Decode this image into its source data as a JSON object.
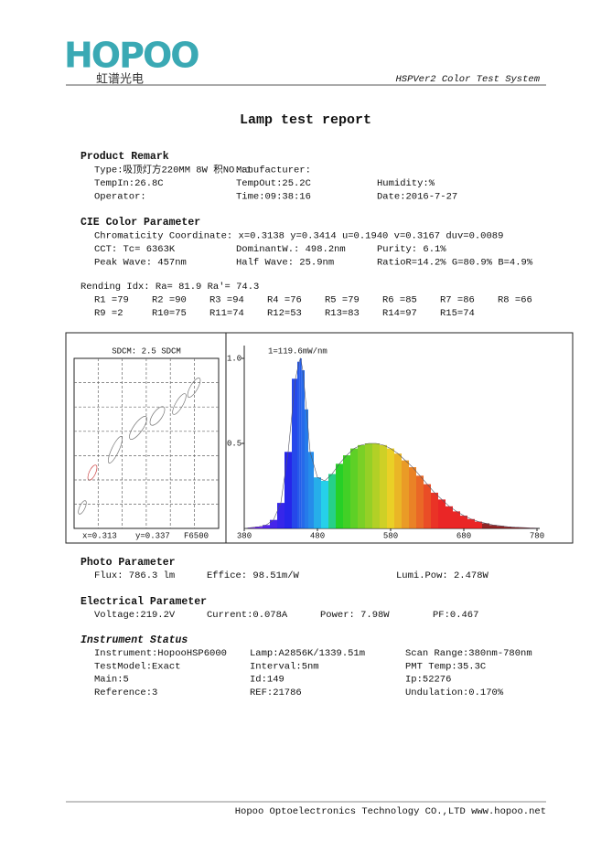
{
  "header": {
    "logo": "HOPOO",
    "logo_sub": "虹谱光电",
    "system": "HSPVer2 Color Test System"
  },
  "title": "Lamp test report",
  "product": {
    "heading": "Product Remark",
    "rows": [
      [
        "Type:吸顶灯方220MM 8W 积NO.:1",
        "Manufacturer:"
      ],
      [
        "TempIn:26.8C",
        "TempOut:25.2C",
        "Humidity:%"
      ],
      [
        "Operator:",
        "Time:09:38:16",
        "Date:2016-7-27"
      ]
    ]
  },
  "cie": {
    "heading": "CIE Color Parameter",
    "rows": [
      [
        "Chromaticity Coordinate: x=0.3138 y=0.3414 u=0.1940 v=0.3167  duv=0.0089"
      ],
      [
        "CCT: Tc= 6363K",
        "DominantW.: 498.2nm",
        "Purity: 6.1%"
      ],
      [
        "Peak Wave: 457nm",
        "Half Wave: 25.9nm",
        "RatioR=14.2% G=80.9% B=4.9%"
      ]
    ]
  },
  "rendering": {
    "heading": "Rending Idx:  Ra= 81.9    Ra'= 74.3",
    "rows": [
      [
        "R1 =79",
        "R2 =90",
        "R3 =94",
        "R4 =76",
        "R5 =79",
        "R6 =85",
        "R7 =86",
        "R8 =66"
      ],
      [
        "R9 =2",
        "R10=75",
        "R11=74",
        "R12=53",
        "R13=83",
        "R14=97",
        "R15=74"
      ]
    ]
  },
  "sdcm": {
    "title": "SDCM:  2.5 SDCM",
    "x": "x=0.313",
    "y": "y=0.337",
    "ref": "F6500"
  },
  "chart_data": {
    "type": "area",
    "annotation": "1=119.6mW/nm",
    "x": [
      380,
      390,
      400,
      410,
      420,
      430,
      440,
      450,
      455,
      457,
      460,
      465,
      470,
      480,
      490,
      500,
      510,
      520,
      530,
      540,
      550,
      560,
      570,
      580,
      590,
      600,
      610,
      620,
      630,
      640,
      650,
      660,
      670,
      680,
      690,
      700,
      710,
      720,
      730,
      740,
      750,
      760,
      770,
      780
    ],
    "values": [
      0,
      0.005,
      0.01,
      0.02,
      0.05,
      0.15,
      0.45,
      0.88,
      0.98,
      1.0,
      0.93,
      0.7,
      0.45,
      0.3,
      0.28,
      0.32,
      0.38,
      0.43,
      0.47,
      0.49,
      0.5,
      0.5,
      0.49,
      0.47,
      0.44,
      0.4,
      0.36,
      0.31,
      0.26,
      0.21,
      0.17,
      0.13,
      0.1,
      0.075,
      0.055,
      0.04,
      0.03,
      0.02,
      0.015,
      0.01,
      0.007,
      0.005,
      0.003,
      0.002
    ],
    "xlim": [
      380,
      780
    ],
    "ylim": [
      0,
      1
    ],
    "xticks": [
      380,
      480,
      580,
      680,
      780
    ],
    "yticks": [
      0.5,
      {
        "value": 1,
        "label": "1.0"
      }
    ]
  },
  "photo": {
    "heading": "Photo Parameter",
    "rows": [
      [
        "Flux: 786.3 lm",
        "Effice: 98.51m/W",
        "Lumi.Pow: 2.478W"
      ]
    ]
  },
  "electrical": {
    "heading": "Electrical Parameter",
    "rows": [
      [
        "Voltage:219.2V",
        "Current:0.078A",
        "Power: 7.98W",
        "PF:0.467"
      ]
    ]
  },
  "instrument": {
    "heading": "Instrument Status",
    "rows": [
      [
        "Instrument:HopooHSP6000",
        "Lamp:A2856K/1339.51m",
        "Scan Range:380nm-780nm"
      ],
      [
        "TestModel:Exact",
        "Interval:5nm",
        "PMT Temp:35.3C"
      ],
      [
        "Main:5",
        "Id:149",
        "Ip:52276"
      ],
      [
        "Reference:3",
        "REF:21786",
        "Undulation:0.170%"
      ]
    ]
  },
  "footer": "Hopoo Optoelectronics Technology CO.,LTD  www.hopoo.net"
}
